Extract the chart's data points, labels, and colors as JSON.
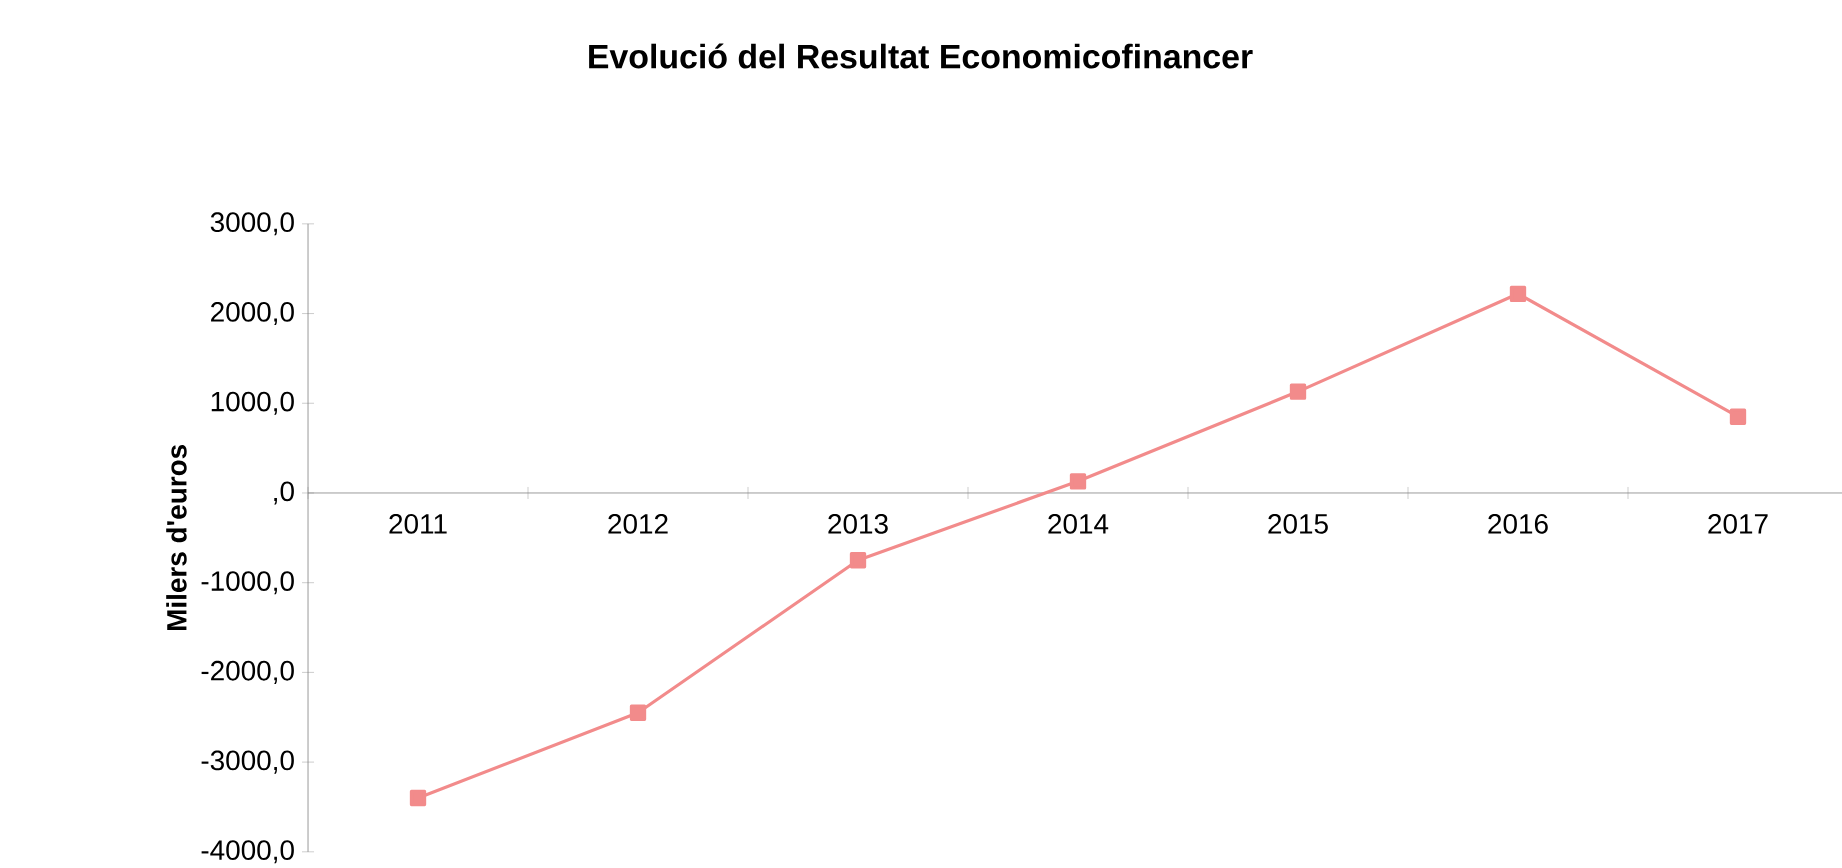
{
  "chart_data": {
    "type": "line",
    "title": "Evolució del Resultat Economicofinancer",
    "ylabel": "Milers d'euros",
    "categories": [
      "2011",
      "2012",
      "2013",
      "2014",
      "2015",
      "2016",
      "2017"
    ],
    "series": [
      {
        "color": "#f28b8b",
        "values": [
          -3400,
          -2450,
          -750,
          130,
          1130,
          2220,
          850
        ]
      }
    ],
    "ylim": [
      -4000,
      3000
    ],
    "yticks": [
      {
        "value": -4000,
        "label": "-4000,0"
      },
      {
        "value": -3000,
        "label": "-3000,0"
      },
      {
        "value": -2000,
        "label": "-2000,0"
      },
      {
        "value": -1000,
        "label": "-1000,0"
      },
      {
        "value": 0,
        "label": ",0"
      },
      {
        "value": 1000,
        "label": "1000,0"
      },
      {
        "value": 2000,
        "label": "2000,0"
      },
      {
        "value": 3000,
        "label": "3000,0"
      }
    ],
    "marker": "square",
    "line_style": "solid"
  }
}
